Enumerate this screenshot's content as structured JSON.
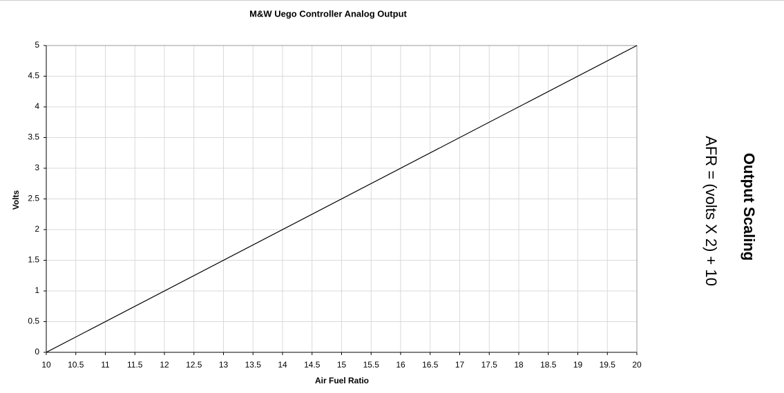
{
  "chart_data": {
    "type": "line",
    "title": "M&W Uego Controller Analog Output",
    "xlabel": "Air Fuel Ratio",
    "ylabel": "Volts",
    "annotations": [
      "Output Scaling",
      "AFR = (volts X 2) + 10"
    ],
    "x": [
      10,
      20
    ],
    "series": [
      {
        "color": "#000000",
        "values": [
          0,
          5
        ]
      }
    ],
    "xlim": [
      10,
      20
    ],
    "xticks": [
      10,
      10.5,
      11,
      11.5,
      12,
      12.5,
      13,
      13.5,
      14,
      14.5,
      15,
      15.5,
      16,
      16.5,
      17,
      17.5,
      18,
      18.5,
      19,
      19.5,
      20
    ],
    "ylim": [
      0,
      5
    ],
    "yticks": [
      0,
      0.5,
      1,
      1.5,
      2,
      2.5,
      3,
      3.5,
      4,
      4.5,
      5
    ],
    "grid": true
  }
}
